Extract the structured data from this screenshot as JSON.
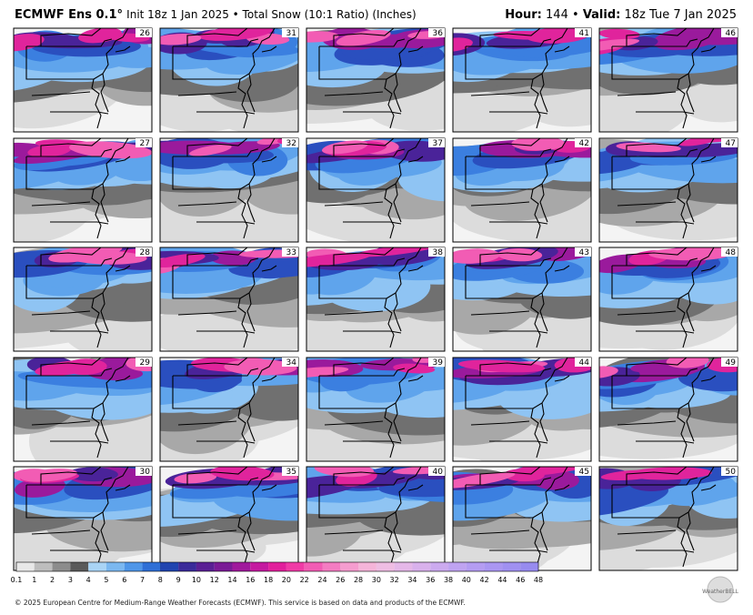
{
  "header": {
    "model": "ECMWF Ens 0.1°",
    "description": "Init 18z 1 Jan 2025 • Total Snow (10:1 Ratio) (Inches)",
    "hour_label": "Hour:",
    "hour": "144",
    "separator": "•",
    "valid_label": "Valid:",
    "valid": "18z Tue 7 Jan 2025"
  },
  "panels": [
    26,
    27,
    28,
    29,
    30,
    31,
    32,
    33,
    34,
    35,
    36,
    37,
    38,
    39,
    40,
    41,
    42,
    43,
    44,
    45,
    46,
    47,
    48,
    49,
    50
  ],
  "colorbar": {
    "labels": [
      "0.1",
      "1",
      "2",
      "3",
      "4",
      "5",
      "6",
      "7",
      "8",
      "9",
      "10",
      "12",
      "14",
      "16",
      "18",
      "20",
      "22",
      "24",
      "26",
      "28",
      "30",
      "32",
      "34",
      "36",
      "38",
      "40",
      "42",
      "44",
      "46",
      "48"
    ],
    "colors": [
      "#e8e8e8",
      "#bdbdbd",
      "#8c8c8c",
      "#5a5a5a",
      "#a9d4f5",
      "#7bb8f0",
      "#4f96e8",
      "#2f6fd6",
      "#2044b0",
      "#3a2a9a",
      "#5a1f94",
      "#7a1a96",
      "#a0189c",
      "#c51aa0",
      "#e21f9c",
      "#f03aa6",
      "#f25cb4",
      "#f47cc2",
      "#f59ccf",
      "#f5b4d9",
      "#efbde3",
      "#e5b8e8",
      "#d9b1ec",
      "#ccaaef",
      "#bfa3f1",
      "#b49cf2",
      "#aa96f2",
      "#a090f1",
      "#978bef"
    ]
  },
  "footer": "© 2025 European Centre for Medium-Range Weather Forecasts (ECMWF). This service is based on data and products of the ECMWF.",
  "logo": "WeatherBELL"
}
